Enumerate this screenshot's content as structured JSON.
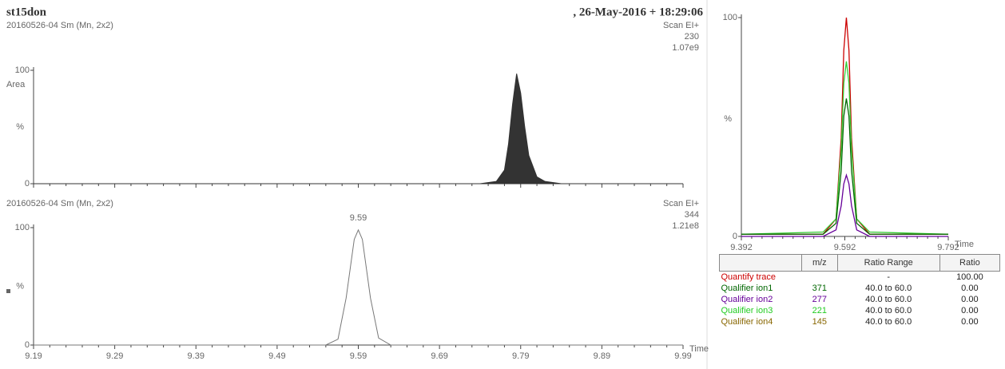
{
  "chart_data": [
    {
      "type": "area",
      "title": "st15don",
      "date": ", 26-May-2016 + 18:29:06",
      "label": "20160526-04 Sm (Mn, 2x2)",
      "scan": "Scan EI+",
      "mass": "230",
      "intensity": "1.07e9",
      "y_label": "%",
      "y_annotation": "Area",
      "color": "#333333",
      "x": [
        9.19,
        9.74,
        9.76,
        9.77,
        9.775,
        9.78,
        9.785,
        9.79,
        9.795,
        9.8,
        9.81,
        9.82,
        9.84,
        9.99
      ],
      "values": [
        0,
        0,
        2,
        12,
        35,
        70,
        97,
        80,
        50,
        25,
        6,
        2,
        0,
        0
      ],
      "xlim": [
        9.19,
        9.99
      ],
      "ylim": [
        0,
        100
      ],
      "yticks": [
        0,
        100
      ],
      "xticks": [
        9.19,
        9.29,
        9.39,
        9.49,
        9.59,
        9.69,
        9.79,
        9.89,
        9.99
      ],
      "show_xtick_labels": false
    },
    {
      "type": "line",
      "label": "20160526-04 Sm (Mn, 2x2)",
      "scan": "Scan EI+",
      "mass": "344",
      "intensity": "1.21e8",
      "y_label": "%",
      "x_label": "Time",
      "color": "#777777",
      "peak_labels": [
        9.59
      ],
      "x": [
        9.19,
        9.55,
        9.565,
        9.575,
        9.585,
        9.59,
        9.595,
        9.605,
        9.615,
        9.63,
        9.99
      ],
      "values": [
        0,
        0,
        5,
        40,
        90,
        98,
        90,
        40,
        6,
        0,
        0
      ],
      "xlim": [
        9.19,
        9.99
      ],
      "ylim": [
        0,
        100
      ],
      "yticks": [
        0,
        100
      ],
      "xticks": [
        9.19,
        9.29,
        9.39,
        9.49,
        9.59,
        9.69,
        9.79,
        9.89,
        9.99
      ],
      "show_xtick_labels": true
    },
    {
      "type": "multiline",
      "y_label": "%",
      "x_label": "Time",
      "x": [
        9.392,
        9.55,
        9.575,
        9.585,
        9.59,
        9.595,
        9.6,
        9.605,
        9.615,
        9.64,
        9.792
      ],
      "series": [
        {
          "color": "#cc0000",
          "values": [
            1,
            1,
            8,
            45,
            85,
            100,
            85,
            45,
            8,
            1,
            1
          ]
        },
        {
          "color": "#33cc33",
          "values": [
            1,
            2,
            8,
            40,
            70,
            80,
            70,
            40,
            8,
            2,
            1
          ]
        },
        {
          "color": "#006600",
          "values": [
            1,
            1,
            6,
            30,
            55,
            63,
            55,
            30,
            6,
            1,
            1
          ]
        },
        {
          "color": "#660099",
          "values": [
            0,
            0,
            3,
            14,
            24,
            28,
            24,
            14,
            3,
            0,
            0
          ]
        }
      ],
      "xlim": [
        9.392,
        9.792
      ],
      "ylim": [
        0,
        100
      ],
      "yticks": [
        0,
        100
      ],
      "xticks": [
        9.392,
        9.592,
        9.792
      ],
      "show_xtick_labels": true
    }
  ],
  "table": {
    "columns": [
      "m/z",
      "Ratio Range",
      "Ratio"
    ],
    "rows": [
      {
        "name": "Quantify trace",
        "color": "#cc0000",
        "cells": [
          "",
          "-",
          "100.00"
        ]
      },
      {
        "name": "Qualifier ion1",
        "color": "#006600",
        "cells": [
          "371",
          "40.0 to 60.0",
          "0.00"
        ]
      },
      {
        "name": "Qualifier ion2",
        "color": "#660099",
        "cells": [
          "277",
          "40.0 to 60.0",
          "0.00"
        ]
      },
      {
        "name": "Qualifier ion3",
        "color": "#22cc22",
        "cells": [
          "221",
          "40.0 to 60.0",
          "0.00"
        ]
      },
      {
        "name": "Qualifier ion4",
        "color": "#886600",
        "cells": [
          "145",
          "40.0 to 60.0",
          "0.00"
        ]
      }
    ]
  }
}
